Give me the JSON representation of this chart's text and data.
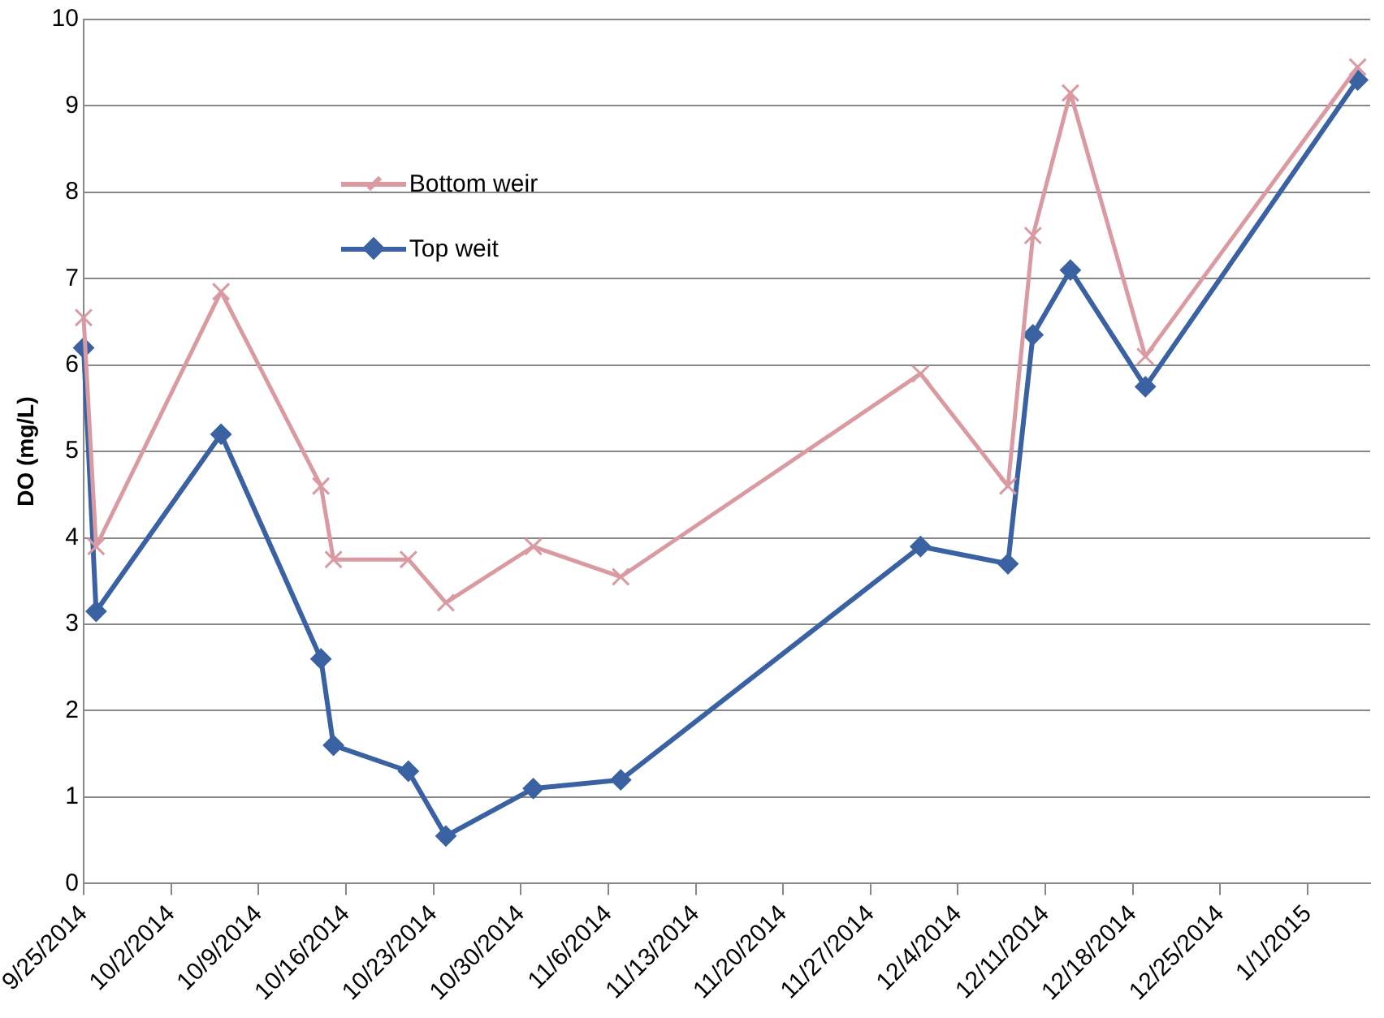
{
  "chart_data": {
    "type": "line",
    "ylabel": "DO (mg/L)",
    "ylim": [
      0,
      10
    ],
    "yticks": [
      0,
      1,
      2,
      3,
      4,
      5,
      6,
      7,
      8,
      9,
      10
    ],
    "xlim": [
      "2014-09-25",
      "2015-01-06"
    ],
    "xticks": [
      {
        "value": "2014-09-25",
        "label": "9/25/2014"
      },
      {
        "value": "2014-10-02",
        "label": "10/2/2014"
      },
      {
        "value": "2014-10-09",
        "label": "10/9/2014"
      },
      {
        "value": "2014-10-16",
        "label": "10/16/2014"
      },
      {
        "value": "2014-10-23",
        "label": "10/23/2014"
      },
      {
        "value": "2014-10-30",
        "label": "10/30/2014"
      },
      {
        "value": "2014-11-06",
        "label": "11/6/2014"
      },
      {
        "value": "2014-11-13",
        "label": "11/13/2014"
      },
      {
        "value": "2014-11-20",
        "label": "11/20/2014"
      },
      {
        "value": "2014-11-27",
        "label": "11/27/2014"
      },
      {
        "value": "2014-12-04",
        "label": "12/4/2014"
      },
      {
        "value": "2014-12-11",
        "label": "12/11/2014"
      },
      {
        "value": "2014-12-18",
        "label": "12/18/2014"
      },
      {
        "value": "2014-12-25",
        "label": "12/25/2014"
      },
      {
        "value": "2015-01-01",
        "label": "1/1/2015"
      }
    ],
    "x": [
      "2014-09-25",
      "2014-09-26",
      "2014-10-06",
      "2014-10-14",
      "2014-10-15",
      "2014-10-21",
      "2014-10-24",
      "2014-10-31",
      "2014-11-07",
      "2014-12-01",
      "2014-12-08",
      "2014-12-10",
      "2014-12-13",
      "2014-12-19",
      "2015-01-05"
    ],
    "grid": "y",
    "legend": "top left",
    "line_style": "solid",
    "series": [
      {
        "name": "Bottom weir",
        "color": "#d99aa2",
        "marker": "cross",
        "values": [
          6.55,
          3.9,
          6.85,
          4.6,
          3.75,
          3.75,
          3.25,
          3.9,
          3.55,
          5.9,
          4.6,
          7.5,
          9.15,
          6.1,
          9.45
        ]
      },
      {
        "name": "Top weit",
        "color": "#3a62a2",
        "marker": "diamond",
        "values": [
          6.2,
          3.15,
          5.2,
          2.6,
          1.6,
          1.3,
          0.55,
          1.1,
          1.2,
          3.9,
          3.7,
          6.35,
          7.1,
          5.75,
          9.3
        ]
      }
    ]
  }
}
